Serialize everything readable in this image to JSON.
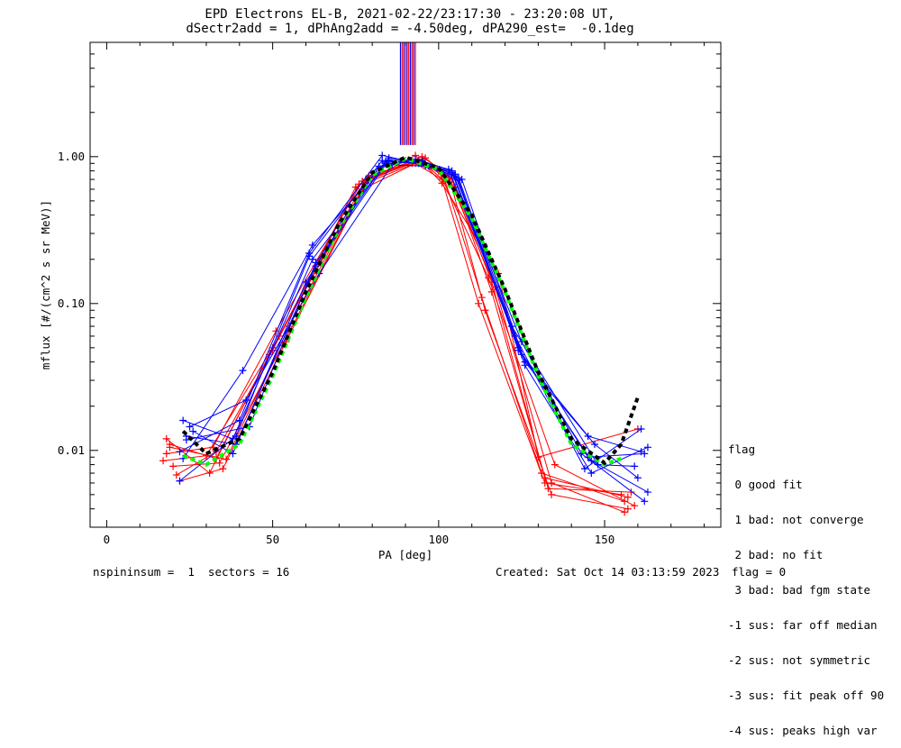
{
  "header": {
    "line1": "EPD Electrons EL-B, 2021-02-22/23:17:30 - 23:20:08 UT,",
    "line2": "dSectr2add = 1, dPhAng2add = -4.50deg, dPA290_est=  -0.1deg"
  },
  "legend": {
    "title": "flag",
    "items": [
      " 0 good fit",
      " 1 bad: not converge",
      " 2 bad: no fit",
      " 3 bad: bad fgm state",
      "-1 sus: far off median",
      "-2 sus: not symmetric",
      "-3 sus: fit peak off 90",
      "-4 sus: peaks high var"
    ]
  },
  "footer": {
    "left": "nspininsum =  1  sectors = 16",
    "created": "Created: Sat Oct 14 03:13:59 2023",
    "flag": "flag = 0"
  },
  "colors": {
    "red": "#ff0000",
    "blue": "#0000ff",
    "green": "#00ff00",
    "black": "#000000"
  },
  "chart_data": {
    "type": "line",
    "title": "EPD Electrons EL-B, 2021-02-22/23:17:30 - 23:20:08 UT,",
    "subtitle": "dSectr2add = 1, dPhAng2add = -4.50deg, dPA290_est=  -0.1deg",
    "xlabel": "PA [deg]",
    "ylabel": "mflux [#/(cm^2 s sr MeV)]",
    "xlim": [
      -5,
      185
    ],
    "ylim": [
      0.003,
      6
    ],
    "yscale": "log",
    "xticks": [
      0,
      50,
      100,
      150
    ],
    "yticks": [
      {
        "value": 0.01,
        "label": "0.01"
      },
      {
        "value": 0.1,
        "label": "0.10"
      },
      {
        "value": 1.0,
        "label": "1.00"
      }
    ],
    "grid": false,
    "vertical_lines": {
      "x": [
        88.5,
        89,
        89.5,
        90,
        90.5,
        91,
        91.5,
        92,
        92.5,
        93
      ],
      "colors": [
        "#0000ff",
        "#ff0000",
        "#0000ff",
        "#ff0000",
        "#0000ff",
        "#ff0000",
        "#0000ff",
        "#ff0000",
        "#0000ff",
        "#ff0000"
      ],
      "y_from": 1.2,
      "y_to": 6
    },
    "series": [
      {
        "color": "#ff0000",
        "x": [
          17,
          30,
          50,
          77,
          93,
          101,
          112,
          132,
          155
        ],
        "y": [
          0.0085,
          0.0092,
          0.05,
          0.6,
          0.9,
          0.7,
          0.1,
          0.006,
          0.005
        ]
      },
      {
        "color": "#ff0000",
        "x": [
          19,
          33,
          52,
          78,
          95,
          103,
          114,
          134,
          157
        ],
        "y": [
          0.011,
          0.0088,
          0.06,
          0.7,
          1.0,
          0.75,
          0.09,
          0.005,
          0.004
        ]
      },
      {
        "color": "#ff0000",
        "x": [
          18,
          31,
          49,
          76,
          94,
          102,
          113,
          131,
          156
        ],
        "y": [
          0.012,
          0.007,
          0.045,
          0.65,
          0.95,
          0.68,
          0.11,
          0.007,
          0.0045
        ]
      },
      {
        "color": "#ff0000",
        "x": [
          22,
          35,
          54,
          79,
          96,
          104,
          116,
          133,
          158
        ],
        "y": [
          0.0062,
          0.0075,
          0.055,
          0.72,
          0.98,
          0.7,
          0.12,
          0.0055,
          0.0052
        ]
      },
      {
        "color": "#ff0000",
        "x": [
          18,
          32,
          51,
          77,
          92,
          100,
          115,
          135,
          159
        ],
        "y": [
          0.0095,
          0.0105,
          0.065,
          0.68,
          0.9,
          0.8,
          0.15,
          0.008,
          0.0042
        ]
      },
      {
        "color": "#ff0000",
        "x": [
          20,
          34,
          53,
          78,
          94,
          103,
          117,
          134,
          156
        ],
        "y": [
          0.0078,
          0.0082,
          0.052,
          0.66,
          0.92,
          0.72,
          0.13,
          0.006,
          0.0038
        ]
      },
      {
        "color": "#ff0000",
        "x": [
          21,
          33,
          50,
          75,
          93,
          101,
          118,
          130,
          160
        ],
        "y": [
          0.0068,
          0.0098,
          0.048,
          0.62,
          1.02,
          0.66,
          0.16,
          0.009,
          0.014
        ]
      },
      {
        "color": "#ff0000",
        "x": [
          19,
          36,
          55,
          79,
          95,
          105,
          116,
          132,
          157
        ],
        "y": [
          0.0105,
          0.0087,
          0.07,
          0.74,
          0.96,
          0.62,
          0.14,
          0.0065,
          0.0048
        ]
      },
      {
        "color": "#0000ff",
        "x": [
          23,
          38,
          62,
          84,
          95,
          105,
          124,
          145,
          162
        ],
        "y": [
          0.016,
          0.012,
          0.2,
          0.9,
          0.92,
          0.76,
          0.05,
          0.009,
          0.0095
        ]
      },
      {
        "color": "#0000ff",
        "x": [
          24,
          39,
          63,
          85,
          96,
          106,
          125,
          146,
          163
        ],
        "y": [
          0.0125,
          0.011,
          0.18,
          0.95,
          0.88,
          0.72,
          0.045,
          0.0085,
          0.0052
        ]
      },
      {
        "color": "#0000ff",
        "x": [
          22,
          40,
          61,
          83,
          94,
          104,
          123,
          144,
          161
        ],
        "y": [
          0.0098,
          0.016,
          0.22,
          1.02,
          0.9,
          0.8,
          0.06,
          0.0075,
          0.014
        ]
      },
      {
        "color": "#0000ff",
        "x": [
          25,
          42,
          64,
          86,
          97,
          107,
          126,
          147,
          160
        ],
        "y": [
          0.0145,
          0.022,
          0.16,
          0.88,
          0.86,
          0.7,
          0.04,
          0.011,
          0.0065
        ]
      },
      {
        "color": "#0000ff",
        "x": [
          23,
          41,
          62,
          84,
          95,
          105,
          125,
          143,
          162
        ],
        "y": [
          0.0088,
          0.035,
          0.25,
          0.92,
          0.94,
          0.74,
          0.055,
          0.0095,
          0.0045
        ]
      },
      {
        "color": "#0000ff",
        "x": [
          26,
          38,
          60,
          82,
          93,
          103,
          122,
          148,
          159
        ],
        "y": [
          0.0135,
          0.0095,
          0.14,
          0.86,
          0.96,
          0.82,
          0.07,
          0.008,
          0.0078
        ]
      },
      {
        "color": "#0000ff",
        "x": [
          24,
          43,
          63,
          85,
          96,
          106,
          124,
          145,
          161
        ],
        "y": [
          0.0118,
          0.0145,
          0.19,
          0.98,
          0.87,
          0.69,
          0.048,
          0.0125,
          0.0098
        ]
      },
      {
        "color": "#0000ff",
        "x": [
          22,
          39,
          61,
          83,
          94,
          104,
          126,
          146,
          163
        ],
        "y": [
          0.0062,
          0.0125,
          0.21,
          0.94,
          0.91,
          0.78,
          0.038,
          0.007,
          0.0105
        ]
      },
      {
        "color": "#00ff00",
        "dashed": true,
        "x": [
          23,
          30,
          40,
          50,
          60,
          70,
          80,
          90,
          100,
          110,
          120,
          130,
          140,
          150,
          155
        ],
        "y": [
          0.0092,
          0.008,
          0.011,
          0.032,
          0.11,
          0.33,
          0.75,
          0.97,
          0.82,
          0.38,
          0.12,
          0.032,
          0.011,
          0.008,
          0.0088
        ]
      },
      {
        "color": "#000000",
        "dashed": true,
        "x": [
          23,
          30,
          40,
          50,
          60,
          70,
          80,
          90,
          100,
          110,
          120,
          130,
          140,
          150,
          155,
          160
        ],
        "y": [
          0.0135,
          0.0095,
          0.012,
          0.034,
          0.12,
          0.35,
          0.78,
          0.99,
          0.84,
          0.4,
          0.125,
          0.034,
          0.012,
          0.0082,
          0.011,
          0.023
        ]
      }
    ]
  }
}
